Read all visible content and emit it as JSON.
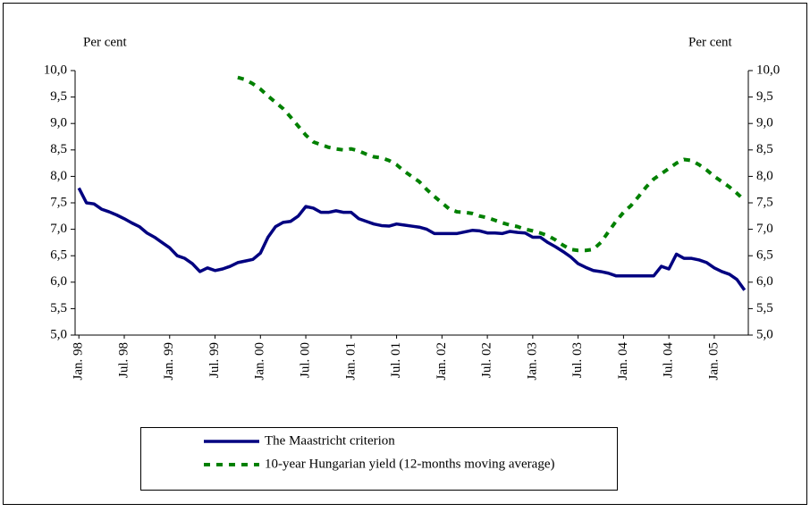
{
  "chart_data": {
    "type": "line",
    "y_label": "Per cent",
    "y2_label": "Per cent",
    "categories": [
      "Jan. 98",
      null,
      null,
      null,
      null,
      null,
      "Jul. 98",
      null,
      null,
      null,
      null,
      null,
      "Jan. 99",
      null,
      null,
      null,
      null,
      null,
      "Jul. 99",
      null,
      null,
      null,
      null,
      null,
      "Jan. 00",
      null,
      null,
      null,
      null,
      null,
      "Jul. 00",
      null,
      null,
      null,
      null,
      null,
      "Jan. 01",
      null,
      null,
      null,
      null,
      null,
      "Jul. 01",
      null,
      null,
      null,
      null,
      null,
      "Jan. 02",
      null,
      null,
      null,
      null,
      null,
      "Jul. 02",
      null,
      null,
      null,
      null,
      null,
      "Jan. 03",
      null,
      null,
      null,
      null,
      null,
      "Jul. 03",
      null,
      null,
      null,
      null,
      null,
      "Jan. 04",
      null,
      null,
      null,
      null,
      null,
      "Jul. 04",
      null,
      null,
      null,
      null,
      null,
      "Jan. 05",
      null,
      null,
      null,
      null
    ],
    "series": [
      {
        "name": "The Maastricht criterion",
        "color": "#000080",
        "style": "solid",
        "values": [
          7.78,
          7.5,
          7.48,
          7.38,
          7.33,
          7.27,
          7.2,
          7.12,
          7.05,
          6.93,
          6.85,
          6.75,
          6.65,
          6.5,
          6.45,
          6.35,
          6.2,
          6.27,
          6.22,
          6.25,
          6.3,
          6.37,
          6.4,
          6.43,
          6.55,
          6.85,
          7.05,
          7.13,
          7.15,
          7.25,
          7.43,
          7.4,
          7.32,
          7.32,
          7.35,
          7.32,
          7.32,
          7.2,
          7.15,
          7.1,
          7.07,
          7.06,
          7.1,
          7.08,
          7.06,
          7.04,
          7.0,
          6.92,
          6.92,
          6.92,
          6.92,
          6.95,
          6.98,
          6.97,
          6.93,
          6.93,
          6.92,
          6.96,
          6.94,
          6.93,
          6.85,
          6.85,
          6.75,
          6.67,
          6.58,
          6.48,
          6.35,
          6.28,
          6.22,
          6.2,
          6.17,
          6.12,
          6.12,
          6.12,
          6.12,
          6.12,
          6.12,
          6.3,
          6.25,
          6.53,
          6.45,
          6.45,
          6.42,
          6.37,
          6.27,
          6.2,
          6.15,
          6.05,
          5.85
        ]
      },
      {
        "name": "10-year Hungarian yield (12-months moving average)",
        "color": "#008000",
        "style": "dashed",
        "values": [
          null,
          null,
          null,
          null,
          null,
          null,
          null,
          null,
          null,
          null,
          null,
          null,
          null,
          null,
          null,
          null,
          null,
          null,
          null,
          null,
          null,
          9.87,
          9.83,
          9.75,
          9.65,
          9.52,
          9.4,
          9.28,
          9.12,
          8.95,
          8.78,
          8.65,
          8.6,
          8.55,
          8.52,
          8.5,
          8.52,
          8.48,
          8.42,
          8.37,
          8.35,
          8.3,
          8.22,
          8.1,
          8.0,
          7.9,
          7.75,
          7.62,
          7.5,
          7.38,
          7.33,
          7.32,
          7.3,
          7.25,
          7.22,
          7.17,
          7.12,
          7.08,
          7.05,
          7.0,
          6.97,
          6.93,
          6.88,
          6.8,
          6.7,
          6.62,
          6.6,
          6.6,
          6.62,
          6.75,
          6.95,
          7.15,
          7.32,
          7.45,
          7.62,
          7.8,
          7.95,
          8.05,
          8.15,
          8.25,
          8.32,
          8.3,
          8.22,
          8.12,
          8.0,
          7.9,
          7.8,
          7.68,
          7.55
        ]
      }
    ],
    "ylim": [
      5,
      10
    ],
    "yticks": [
      {
        "value": 5,
        "label": "5,0"
      },
      {
        "value": 5.5,
        "label": "5,5"
      },
      {
        "value": 6,
        "label": "6,0"
      },
      {
        "value": 6.5,
        "label": "6,5"
      },
      {
        "value": 7,
        "label": "7,0"
      },
      {
        "value": 7.5,
        "label": "7,5"
      },
      {
        "value": 8,
        "label": "8,0"
      },
      {
        "value": 8.5,
        "label": "8,5"
      },
      {
        "value": 9,
        "label": "9,0"
      },
      {
        "value": 9.5,
        "label": "9,5"
      },
      {
        "value": 10,
        "label": "10,0"
      }
    ],
    "y2lim": [
      5,
      10
    ],
    "y2ticks": [
      {
        "value": 5,
        "label": "5,0"
      },
      {
        "value": 5.5,
        "label": "5,5"
      },
      {
        "value": 6,
        "label": "6,0"
      },
      {
        "value": 6.5,
        "label": "6,5"
      },
      {
        "value": 7,
        "label": "7,0"
      },
      {
        "value": 7.5,
        "label": "7,5"
      },
      {
        "value": 8,
        "label": "8,0"
      },
      {
        "value": 8.5,
        "label": "8,5"
      },
      {
        "value": 9,
        "label": "9,0"
      },
      {
        "value": 9.5,
        "label": "9,5"
      },
      {
        "value": 10,
        "label": "10,0"
      }
    ],
    "grid": false
  }
}
